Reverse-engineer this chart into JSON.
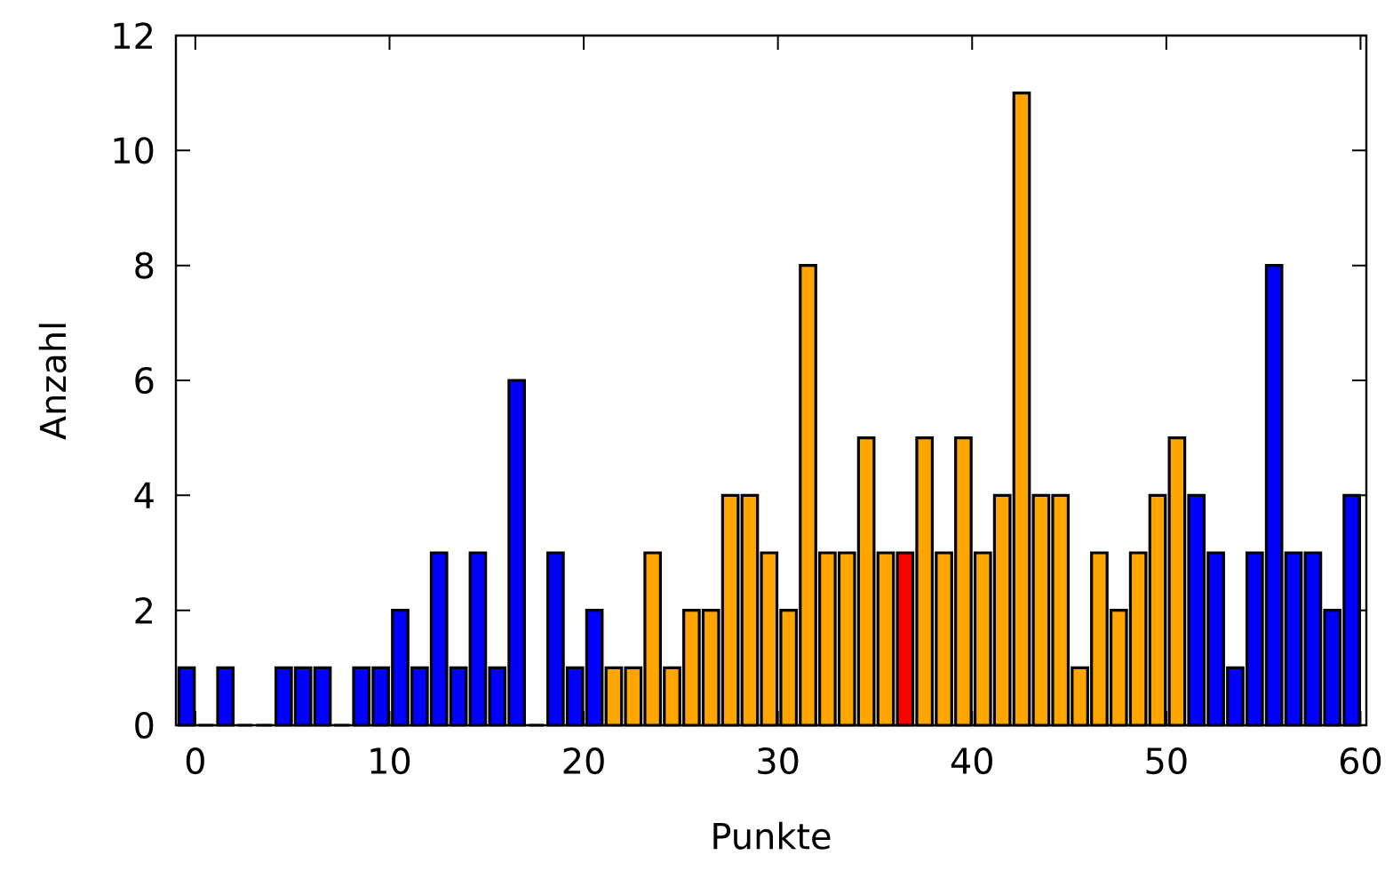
{
  "chart_data": {
    "type": "bar",
    "xlabel": "Punkte",
    "ylabel": "Anzahl",
    "x": [
      -0.45,
      0.55,
      1.55,
      2.55,
      3.55,
      4.55,
      5.55,
      6.55,
      7.55,
      8.55,
      9.55,
      10.55,
      11.55,
      12.55,
      13.55,
      14.55,
      15.55,
      16.55,
      17.55,
      18.55,
      19.55,
      20.55,
      21.55,
      22.55,
      23.55,
      24.55,
      25.55,
      26.55,
      27.55,
      28.55,
      29.55,
      30.55,
      31.55,
      32.55,
      33.55,
      34.55,
      35.55,
      36.55,
      37.55,
      38.55,
      39.55,
      40.55,
      41.55,
      42.55,
      43.55,
      44.55,
      45.55,
      46.55,
      47.55,
      48.55,
      49.55,
      50.55,
      51.55,
      52.55,
      53.55,
      54.55,
      55.55,
      56.55,
      57.55,
      58.55,
      59.55
    ],
    "values": [
      1,
      0,
      1,
      0,
      0,
      1,
      1,
      1,
      0,
      1,
      1,
      2,
      1,
      3,
      1,
      3,
      1,
      6,
      0,
      3,
      1,
      2,
      1,
      1,
      3,
      1,
      2,
      2,
      4,
      4,
      3,
      2,
      8,
      3,
      3,
      5,
      3,
      3,
      5,
      3,
      5,
      3,
      4,
      11,
      4,
      4,
      1,
      3,
      2,
      3,
      4,
      5,
      4,
      3,
      1,
      3,
      8,
      3,
      3,
      2,
      4
    ],
    "colors": [
      "#0000ff",
      "#0000ff",
      "#0000ff",
      "#0000ff",
      "#0000ff",
      "#0000ff",
      "#0000ff",
      "#0000ff",
      "#0000ff",
      "#0000ff",
      "#0000ff",
      "#0000ff",
      "#0000ff",
      "#0000ff",
      "#0000ff",
      "#0000ff",
      "#0000ff",
      "#0000ff",
      "#0000ff",
      "#0000ff",
      "#0000ff",
      "#0000ff",
      "#ffa500",
      "#ffa500",
      "#ffa500",
      "#ffa500",
      "#ffa500",
      "#ffa500",
      "#ffa500",
      "#ffa500",
      "#ffa500",
      "#ffa500",
      "#ffa500",
      "#ffa500",
      "#ffa500",
      "#ffa500",
      "#ffa500",
      "#ff0000",
      "#ffa500",
      "#ffa500",
      "#ffa500",
      "#ffa500",
      "#ffa500",
      "#ffa500",
      "#ffa500",
      "#ffa500",
      "#ffa500",
      "#ffa500",
      "#ffa500",
      "#ffa500",
      "#ffa500",
      "#ffa500",
      "#0000ff",
      "#0000ff",
      "#0000ff",
      "#0000ff",
      "#0000ff",
      "#0000ff",
      "#0000ff",
      "#0000ff",
      "#0000ff"
    ],
    "xlim": [
      -1,
      60.3
    ],
    "ylim": [
      0,
      12
    ],
    "xticks": [
      0,
      10,
      20,
      30,
      40,
      50,
      60
    ],
    "yticks": [
      0,
      2,
      4,
      6,
      8,
      10,
      12
    ],
    "grid": false
  }
}
